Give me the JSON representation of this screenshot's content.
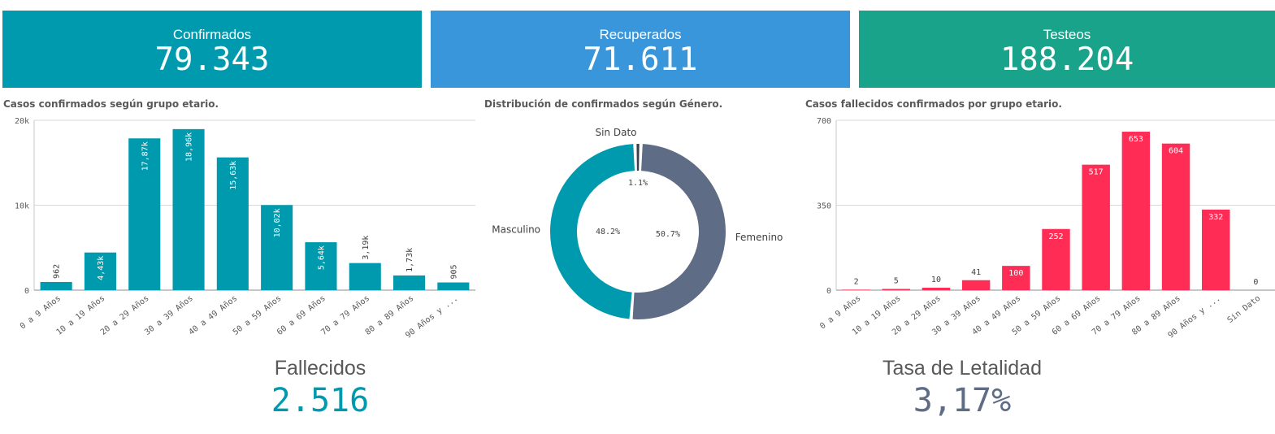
{
  "kpis": {
    "confirmados": {
      "label": "Confirmados",
      "value": "79.343",
      "color": "#009aae"
    },
    "recuperados": {
      "label": "Recuperados",
      "value": "71.611",
      "color": "#3a96db"
    },
    "testeos": {
      "label": "Testeos",
      "value": "188.204",
      "color": "#19a38b"
    }
  },
  "bottom": {
    "fallecidos": {
      "label": "Fallecidos",
      "value": "2.516",
      "color": "#009aae"
    },
    "letalidad": {
      "label": "Tasa de Letalidad",
      "value": "3,17%",
      "color": "#5f6c85"
    }
  },
  "chart_data": [
    {
      "type": "bar",
      "title": "Casos confirmados según grupo etario.",
      "categories": [
        "0 a 9 Años",
        "10 a 19 Años",
        "20 a 29 Años",
        "30 a 39 Años",
        "40 a 49 Años",
        "50 a 59 Años",
        "60 a 69 Años",
        "70 a 79 Años",
        "80 a 89 Años",
        "90 Años y ..."
      ],
      "values": [
        962,
        4430,
        17870,
        18960,
        15630,
        10020,
        5640,
        3190,
        1730,
        905
      ],
      "data_labels": [
        "962",
        "4,43k",
        "17,87k",
        "18,96k",
        "15,63k",
        "10,02k",
        "5,64k",
        "3,19k",
        "1,73k",
        "905"
      ],
      "yticks": [
        0,
        10000,
        20000
      ],
      "ytick_labels": [
        "0",
        "10k",
        "20k"
      ],
      "ylim": [
        0,
        20000
      ],
      "grid": true,
      "color": "#009aae"
    },
    {
      "type": "pie",
      "title": "Distribución de confirmados según Género.",
      "labels": [
        "Femenino",
        "Masculino",
        "Sin Dato"
      ],
      "values": [
        50.7,
        48.2,
        1.1
      ],
      "value_labels": [
        "50.7%",
        "48.2%",
        "1.1%"
      ],
      "colors": [
        "#5f6c85",
        "#009aae",
        "#3c4048"
      ]
    },
    {
      "type": "bar",
      "title": "Casos fallecidos confirmados por grupo etario.",
      "categories": [
        "0 a 9 Años",
        "10 a 19 Años",
        "20 a 29 Años",
        "30 a 39 Años",
        "40 a 49 Años",
        "50 a 59 Años",
        "60 a 69 Años",
        "70 a 79 Años",
        "80 a 89 Años",
        "90 Años y ...",
        "Sin Dato"
      ],
      "values": [
        2,
        5,
        10,
        41,
        100,
        252,
        517,
        653,
        604,
        332,
        0
      ],
      "data_labels": [
        "2",
        "5",
        "10",
        "41",
        "100",
        "252",
        "517",
        "653",
        "604",
        "332",
        "0"
      ],
      "yticks": [
        0,
        350,
        700
      ],
      "ytick_labels": [
        "0",
        "350",
        "700"
      ],
      "ylim": [
        0,
        700
      ],
      "grid": true,
      "color": "#ff2d55"
    }
  ]
}
